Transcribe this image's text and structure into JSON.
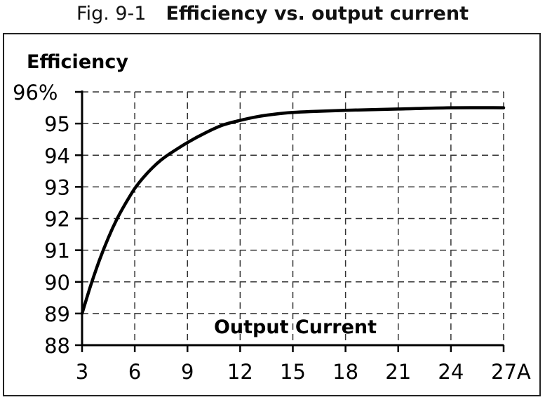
{
  "caption": {
    "fig_label": "Fig. 9-1",
    "title": "Efficiency vs. output current"
  },
  "chart_data": {
    "type": "line",
    "title": "Efficiency vs. output current",
    "xlabel": "Output Current",
    "ylabel": "Efficiency",
    "x_unit": "A",
    "y_unit": "%",
    "xlim": [
      3,
      27
    ],
    "ylim": [
      88,
      96
    ],
    "x_ticks": [
      3,
      6,
      9,
      12,
      15,
      18,
      21,
      24,
      27
    ],
    "y_ticks": [
      88,
      89,
      90,
      91,
      92,
      93,
      94,
      95,
      96
    ],
    "x_tick_labels": [
      "3",
      "6",
      "9",
      "12",
      "15",
      "18",
      "21",
      "24",
      "27A"
    ],
    "y_tick_labels": [
      "88",
      "89",
      "90",
      "91",
      "92",
      "93",
      "94",
      "95",
      "96%"
    ],
    "grid": true,
    "grid_style": "dashed",
    "line_color": "#000000",
    "series": [
      {
        "x": [
          3,
          3.5,
          4,
          4.5,
          5,
          5.5,
          6,
          6.5,
          7,
          7.5,
          8,
          9,
          10,
          11,
          12,
          13,
          14,
          15,
          16,
          18,
          21,
          24,
          27
        ],
        "y": [
          89.0,
          89.9,
          90.7,
          91.4,
          92.0,
          92.5,
          92.95,
          93.3,
          93.6,
          93.85,
          94.05,
          94.4,
          94.7,
          94.95,
          95.1,
          95.22,
          95.3,
          95.35,
          95.38,
          95.42,
          95.46,
          95.5,
          95.5
        ]
      }
    ]
  }
}
